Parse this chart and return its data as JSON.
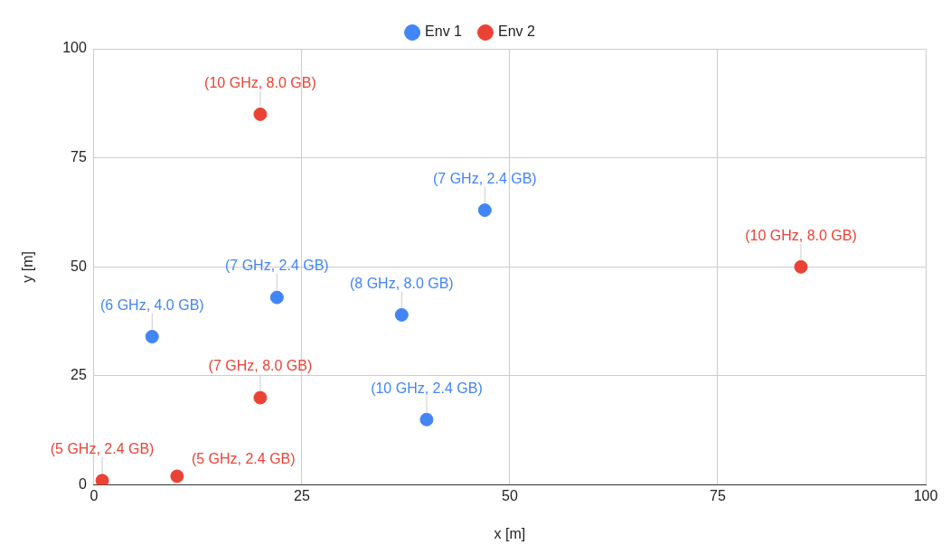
{
  "chart_data": {
    "type": "scatter",
    "xlabel": "x [m]",
    "ylabel": "y [m]",
    "xlim": [
      0,
      100
    ],
    "ylim": [
      0,
      100
    ],
    "xticks": [
      0,
      25,
      50,
      75,
      100
    ],
    "yticks": [
      0,
      25,
      50,
      75,
      100
    ],
    "grid": true,
    "legend": "top",
    "marker": "circle",
    "series": [
      {
        "name": "Env 1",
        "color": "#4285f4",
        "x": [
          7,
          22,
          37,
          47,
          40
        ],
        "values": [
          34,
          43,
          39,
          63,
          15
        ],
        "value_labels": [
          "(6 GHz, 4.0 GB)",
          "(7 GHz, 2.4 GB)",
          "(8 GHz, 8.0 GB)",
          "(7 GHz, 2.4 GB)",
          "(10 GHz, 2.4 GB)"
        ]
      },
      {
        "name": "Env 2",
        "color": "#ea4335",
        "x": [
          20,
          85,
          20,
          1,
          10
        ],
        "values": [
          85,
          50,
          20,
          1,
          2
        ],
        "value_labels": [
          "(10 GHz, 8.0 GB)",
          "(10 GHz, 8.0 GB)",
          "(7 GHz, 8.0 GB)",
          "(5 GHz, 2.4 GB)",
          "(5 GHz, 2.4 GB)"
        ]
      }
    ]
  }
}
